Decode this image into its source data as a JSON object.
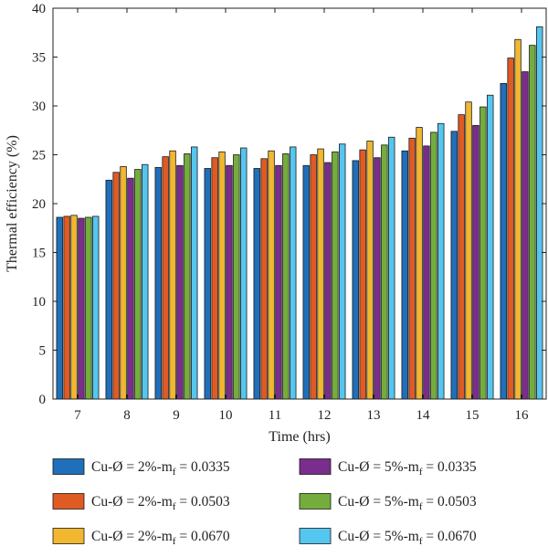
{
  "chart_data": {
    "type": "bar",
    "xlabel": "Time (hrs)",
    "ylabel": "Thermal efficiency (%)",
    "ylim": [
      0,
      40
    ],
    "yticks": [
      0,
      5,
      10,
      15,
      20,
      25,
      30,
      35,
      40
    ],
    "grid": false,
    "legend_position": "bottom",
    "categories": [
      "7",
      "8",
      "9",
      "10",
      "11",
      "12",
      "13",
      "14",
      "15",
      "16"
    ],
    "series": [
      {
        "name": "Cu-Ø = 2%-m",
        "sub": "f",
        "suffix": " = 0.0335",
        "color": "#1f6fba",
        "values": [
          18.6,
          22.4,
          23.7,
          23.6,
          23.6,
          23.9,
          24.4,
          25.4,
          27.4,
          32.3
        ]
      },
      {
        "name": "Cu-Ø = 2%-m",
        "sub": "f",
        "suffix": " = 0.0503",
        "color": "#e05a24",
        "values": [
          18.7,
          23.2,
          24.8,
          24.7,
          24.6,
          25.0,
          25.5,
          26.7,
          29.1,
          34.9
        ]
      },
      {
        "name": "Cu-Ø = 2%-m",
        "sub": "f",
        "suffix": " = 0.0670",
        "color": "#f2b730",
        "values": [
          18.8,
          23.8,
          25.4,
          25.3,
          25.4,
          25.6,
          26.4,
          27.8,
          30.4,
          36.8
        ]
      },
      {
        "name": "Cu-Ø = 5%-m",
        "sub": "f",
        "suffix": " = 0.0335",
        "color": "#7a2d8c",
        "values": [
          18.5,
          22.6,
          23.9,
          23.9,
          23.9,
          24.2,
          24.7,
          25.9,
          28.0,
          33.5
        ]
      },
      {
        "name": "Cu-Ø = 5%-m",
        "sub": "f",
        "suffix": " = 0.0503",
        "color": "#74ad3c",
        "values": [
          18.6,
          23.5,
          25.1,
          25.0,
          25.1,
          25.3,
          26.0,
          27.3,
          29.9,
          36.2
        ]
      },
      {
        "name": "Cu-Ø = 5%-m",
        "sub": "f",
        "suffix": " = 0.0670",
        "color": "#55c6ef",
        "values": [
          18.7,
          24.0,
          25.8,
          25.7,
          25.8,
          26.1,
          26.8,
          28.2,
          31.1,
          38.1
        ]
      }
    ]
  }
}
